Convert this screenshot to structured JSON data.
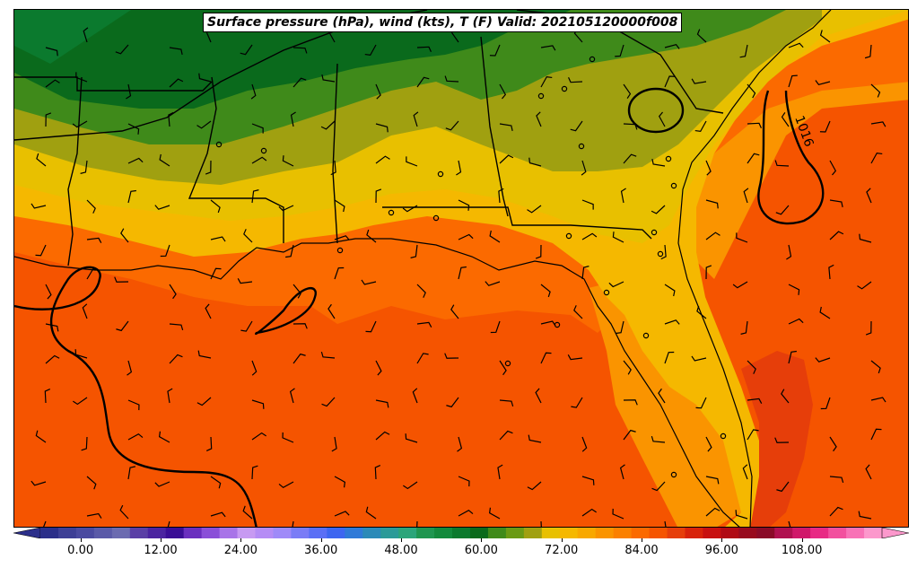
{
  "title": "Surface pressure (hPa), wind (kts), T (F) Valid: 202105120000f008",
  "isobar_label": "1016",
  "colorbar": {
    "tick_labels": [
      "0.00",
      "12.00",
      "24.00",
      "36.00",
      "48.00",
      "60.00",
      "72.00",
      "84.00",
      "96.00",
      "108.00"
    ],
    "tick_values": [
      0,
      12,
      24,
      36,
      48,
      60,
      72,
      84,
      96,
      108
    ],
    "range": [
      -6,
      120
    ],
    "step": 3,
    "extend": "both",
    "colors": [
      "#2b2f8a",
      "#3d3f96",
      "#4a4aa0",
      "#5a5aa8",
      "#6b6bb0",
      "#5a3fa6",
      "#4b24a0",
      "#3a0e96",
      "#6a2fbf",
      "#8a4fd8",
      "#a874e8",
      "#c79af2",
      "#b58cf5",
      "#9f8af8",
      "#7a7cf6",
      "#5a6ff5",
      "#3d66f0",
      "#2f7ad8",
      "#2b8ab8",
      "#2b9a98",
      "#2ba57a",
      "#1f9650",
      "#138a3c",
      "#0b7a2e",
      "#0a6a1c",
      "#3f8a1a",
      "#6a9a14",
      "#a0a010",
      "#e8c000",
      "#f5b800",
      "#f8a800",
      "#fa9400",
      "#fb8000",
      "#fb6a00",
      "#f55400",
      "#e63e0a",
      "#d8220a",
      "#c81010",
      "#b00a14",
      "#980a1e",
      "#8a0a28",
      "#b01050",
      "#d0186a",
      "#e82a84",
      "#f2509e",
      "#f872b6",
      "#fc98cc"
    ]
  },
  "map_colors": {
    "t_50_57": "#0b7a2e",
    "t_57_60": "#0a6a1c",
    "t_60_63": "#3f8a1a",
    "t_63_66": "#a0a010",
    "t_66_69": "#e8c000",
    "t_69_72": "#f5b800",
    "t_72_75": "#fa9400",
    "t_75_78": "#fb6a00",
    "t_78_81": "#f55400",
    "t_81_84": "#e63e0a"
  }
}
